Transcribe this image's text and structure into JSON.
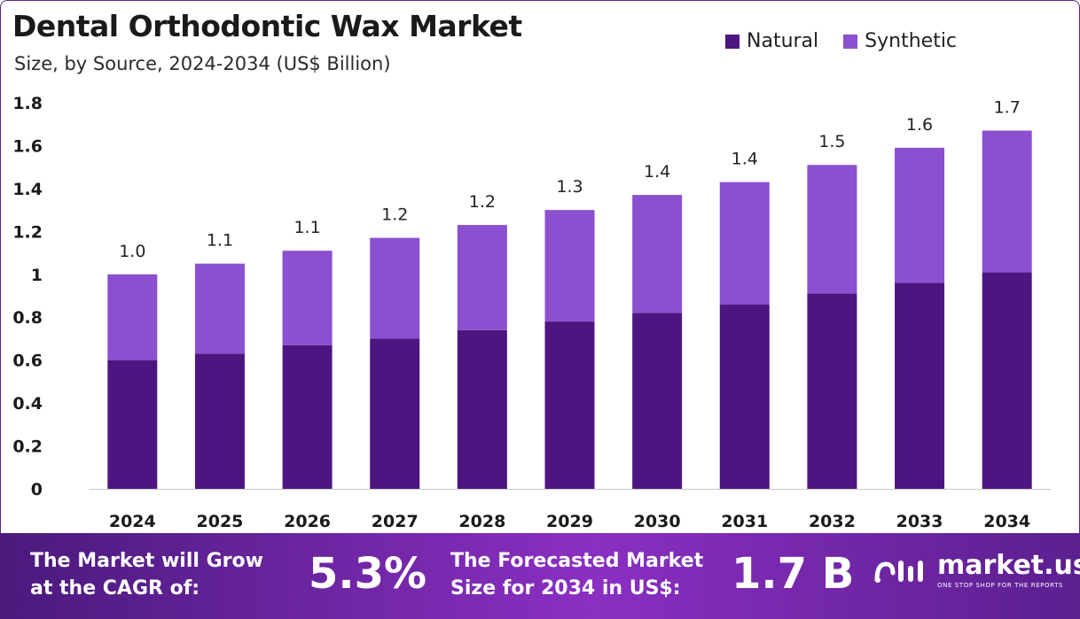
{
  "title": "Dental Orthodontic Wax Market",
  "subtitle": "Size, by Source, 2024-2034 (US$ Billion)",
  "colors": {
    "natural": "#4e1580",
    "synthetic": "#8c4fd0"
  },
  "chart_data": {
    "type": "bar",
    "stacked": true,
    "title": "Dental Orthodontic Wax Market",
    "subtitle": "Size, by Source, 2024-2034 (US$ Billion)",
    "categories": [
      "2024",
      "2025",
      "2026",
      "2027",
      "2028",
      "2029",
      "2030",
      "2031",
      "2032",
      "2033",
      "2034"
    ],
    "series": [
      {
        "name": "Natural",
        "values": [
          0.6,
          0.63,
          0.67,
          0.7,
          0.74,
          0.78,
          0.82,
          0.86,
          0.91,
          0.96,
          1.01
        ]
      },
      {
        "name": "Synthetic",
        "values": [
          0.4,
          0.42,
          0.44,
          0.47,
          0.49,
          0.52,
          0.55,
          0.57,
          0.6,
          0.63,
          0.66
        ]
      }
    ],
    "totals_labels": [
      "1.0",
      "1.1",
      "1.1",
      "1.2",
      "1.2",
      "1.3",
      "1.4",
      "1.4",
      "1.5",
      "1.6",
      "1.7"
    ],
    "totals": [
      1.0,
      1.05,
      1.11,
      1.17,
      1.23,
      1.3,
      1.37,
      1.43,
      1.51,
      1.59,
      1.67
    ],
    "y_ticks": [
      "0",
      "0.2",
      "0.4",
      "0.6",
      "0.8",
      "1",
      "1.2",
      "1.4",
      "1.6",
      "1.8"
    ],
    "ylim": [
      0,
      1.8
    ],
    "legend_position": "top-right",
    "grid": false
  },
  "footer": {
    "cagr_label": "The Market will Grow at the CAGR of:",
    "cagr_label_line1": "The Market will Grow",
    "cagr_label_line2": "at the CAGR of:",
    "cagr_value": "5.3%",
    "forecast_label_line1": "The Forecasted Market",
    "forecast_label_line2": "Size for 2034 in US$:",
    "forecast_value": "1.7 B",
    "brand_name": "market.us",
    "brand_tagline": "ONE STOP SHOP FOR THE REPORTS"
  }
}
